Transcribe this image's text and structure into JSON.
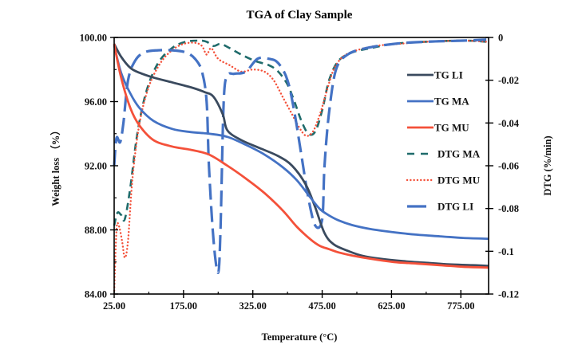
{
  "chart_data": {
    "type": "line",
    "title": "TGA of Clay Sample",
    "xlabel": "Temperature (°C)",
    "ylabel": "Weight loss （%）",
    "y2label": "DTG (%/min)",
    "xlim": [
      25,
      835
    ],
    "ylim": [
      84,
      100
    ],
    "y2lim": [
      -0.12,
      0
    ],
    "x_ticks": [
      25,
      175,
      325,
      475,
      625,
      775
    ],
    "x_tick_labels": [
      "25.00",
      "175.00",
      "325.00",
      "475.00",
      "625.00",
      "775.00"
    ],
    "y_ticks": [
      84,
      88,
      92,
      96,
      100
    ],
    "y_tick_labels": [
      "84.00",
      "88.00",
      "92.00",
      "96.00",
      "100.00"
    ],
    "y2_ticks": [
      0,
      -0.02,
      -0.04,
      -0.06,
      -0.08,
      -0.1,
      -0.12
    ],
    "y2_tick_labels": [
      "0",
      "-0.02",
      "-0.04",
      "-0.06",
      "-0.08",
      "-0.1",
      "-0.12"
    ],
    "grid": false,
    "legend_position": "right-inside",
    "series": [
      {
        "name": "TG LI",
        "axis": "left",
        "style": "solid",
        "color": "#3a4a5e",
        "x": [
          25,
          40,
          60,
          80,
          110,
          150,
          190,
          220,
          240,
          260,
          270,
          300,
          340,
          380,
          410,
          440,
          460,
          480,
          500,
          530,
          560,
          600,
          650,
          700,
          750,
          800,
          835
        ],
        "y": [
          99.6,
          98.8,
          98.1,
          97.8,
          97.5,
          97.2,
          96.9,
          96.6,
          96.3,
          95.2,
          94.2,
          93.6,
          93.1,
          92.6,
          92.0,
          90.8,
          89.4,
          87.8,
          87.1,
          86.7,
          86.4,
          86.2,
          86.05,
          85.95,
          85.85,
          85.8,
          85.75
        ]
      },
      {
        "name": "TG MA",
        "axis": "left",
        "style": "solid",
        "color": "#4472c4",
        "x": [
          25,
          40,
          60,
          80,
          110,
          150,
          190,
          230,
          270,
          310,
          350,
          390,
          420,
          450,
          470,
          490,
          510,
          540,
          580,
          630,
          680,
          730,
          780,
          835
        ],
        "y": [
          99.5,
          97.8,
          96.5,
          95.6,
          94.8,
          94.3,
          94.1,
          94.0,
          93.8,
          93.3,
          92.7,
          91.9,
          91.1,
          90.0,
          89.3,
          88.9,
          88.6,
          88.3,
          88.05,
          87.85,
          87.7,
          87.6,
          87.5,
          87.45
        ]
      },
      {
        "name": "TG MU",
        "axis": "left",
        "style": "solid",
        "color": "#f4513a",
        "x": [
          25,
          40,
          60,
          80,
          110,
          150,
          190,
          230,
          270,
          310,
          350,
          390,
          420,
          450,
          470,
          490,
          510,
          540,
          580,
          630,
          680,
          730,
          780,
          835
        ],
        "y": [
          99.6,
          97.5,
          95.6,
          94.5,
          93.6,
          93.2,
          93.0,
          92.7,
          92.0,
          91.2,
          90.3,
          89.2,
          88.2,
          87.4,
          87.0,
          86.8,
          86.6,
          86.4,
          86.2,
          86.0,
          85.9,
          85.8,
          85.7,
          85.65
        ]
      },
      {
        "name": "DTG MA",
        "axis": "right",
        "style": "dashed",
        "color": "#1f6b6b",
        "x": [
          25,
          32,
          40,
          48,
          60,
          75,
          95,
          120,
          150,
          180,
          210,
          225,
          240,
          255,
          275,
          300,
          330,
          360,
          380,
          400,
          415,
          430,
          445,
          460,
          475,
          490,
          510,
          540,
          580,
          630,
          700,
          780,
          830
        ],
        "y": [
          -0.088,
          -0.082,
          -0.083,
          -0.085,
          -0.07,
          -0.045,
          -0.025,
          -0.012,
          -0.005,
          -0.002,
          -0.0015,
          -0.002,
          -0.004,
          -0.003,
          -0.005,
          -0.008,
          -0.011,
          -0.013,
          -0.016,
          -0.022,
          -0.03,
          -0.039,
          -0.045,
          -0.044,
          -0.034,
          -0.02,
          -0.011,
          -0.007,
          -0.005,
          -0.003,
          -0.002,
          -0.0015,
          -0.002
        ]
      },
      {
        "name": "DTG MU",
        "axis": "right",
        "style": "dotted",
        "color": "#f4513a",
        "x": [
          25,
          30,
          35,
          42,
          48,
          55,
          65,
          80,
          100,
          125,
          150,
          175,
          200,
          215,
          225,
          235,
          250,
          275,
          300,
          325,
          350,
          370,
          390,
          410,
          425,
          440,
          455,
          470,
          485,
          500,
          520,
          550,
          590,
          640,
          700,
          780,
          830
        ],
        "y": [
          -0.12,
          -0.09,
          -0.088,
          -0.095,
          -0.103,
          -0.095,
          -0.065,
          -0.04,
          -0.023,
          -0.012,
          -0.006,
          -0.003,
          -0.0025,
          -0.004,
          -0.008,
          -0.005,
          -0.01,
          -0.013,
          -0.016,
          -0.015,
          -0.016,
          -0.02,
          -0.028,
          -0.036,
          -0.042,
          -0.046,
          -0.044,
          -0.036,
          -0.025,
          -0.015,
          -0.009,
          -0.006,
          -0.004,
          -0.003,
          -0.002,
          -0.0015,
          -0.002
        ]
      },
      {
        "name": "DTG LI",
        "axis": "right",
        "style": "long-dash",
        "color": "#4472c4",
        "x": [
          25,
          30,
          38,
          45,
          55,
          70,
          90,
          120,
          150,
          180,
          200,
          215,
          225,
          230,
          240,
          250,
          255,
          262,
          270,
          285,
          310,
          335,
          360,
          380,
          400,
          415,
          430,
          445,
          460,
          475,
          480,
          490,
          505,
          530,
          570,
          630,
          700,
          780,
          830
        ],
        "y": [
          -0.06,
          -0.047,
          -0.049,
          -0.04,
          -0.02,
          -0.011,
          -0.007,
          -0.006,
          -0.006,
          -0.007,
          -0.01,
          -0.016,
          -0.03,
          -0.06,
          -0.095,
          -0.11,
          -0.09,
          -0.03,
          -0.018,
          -0.017,
          -0.016,
          -0.01,
          -0.01,
          -0.012,
          -0.02,
          -0.035,
          -0.055,
          -0.075,
          -0.088,
          -0.085,
          -0.06,
          -0.035,
          -0.015,
          -0.008,
          -0.005,
          -0.003,
          -0.002,
          -0.0015,
          -0.001
        ]
      }
    ]
  }
}
